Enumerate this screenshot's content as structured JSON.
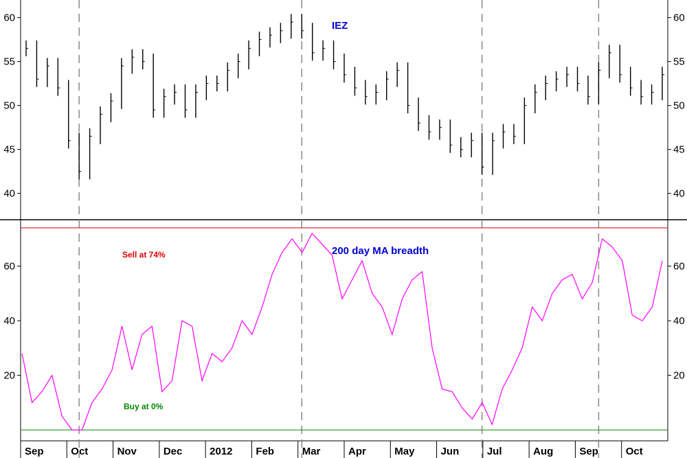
{
  "chart_data": [
    {
      "type": "ohlc",
      "title": "IEZ",
      "ylim": [
        37,
        62
      ],
      "yticks": [
        40,
        45,
        50,
        55,
        60
      ],
      "x": [
        "Aug 29",
        "Sep 05",
        "Sep 12",
        "Sep 19",
        "Sep 26",
        "Oct 03",
        "Oct 10",
        "Oct 17",
        "Oct 24",
        "Oct 31",
        "Nov 07",
        "Nov 14",
        "Nov 21",
        "Nov 28",
        "Dec 05",
        "Dec 12",
        "Dec 19",
        "Dec 26",
        "Jan 02",
        "Jan 09",
        "Jan 16",
        "Jan 23",
        "Jan 30",
        "Feb 06",
        "Feb 13",
        "Feb 20",
        "Feb 27",
        "Mar 05",
        "Mar 12",
        "Mar 19",
        "Mar 26",
        "Apr 02",
        "Apr 09",
        "Apr 16",
        "Apr 23",
        "Apr 30",
        "May 07",
        "May 14",
        "May 21",
        "May 28",
        "Jun 04",
        "Jun 11",
        "Jun 18",
        "Jun 25",
        "Jul 02",
        "Jul 09",
        "Jul 16",
        "Jul 23",
        "Jul 30",
        "Aug 06",
        "Aug 13",
        "Aug 20",
        "Aug 27",
        "Sep 03",
        "Sep 10",
        "Sep 17",
        "Sep 24",
        "Oct 01",
        "Oct 08",
        "Oct 15",
        "Oct 22"
      ],
      "close": [
        56.5,
        53.0,
        54.5,
        52.0,
        46.0,
        42.5,
        46.5,
        49.0,
        50.5,
        54.5,
        55.5,
        55.0,
        49.5,
        51.0,
        51.5,
        49.5,
        51.5,
        52.5,
        52.5,
        54.0,
        55.0,
        56.5,
        57.5,
        58.0,
        58.5,
        59.5,
        58.5,
        56.0,
        56.5,
        55.0,
        53.5,
        52.0,
        51.0,
        51.5,
        53.0,
        54.0,
        50.0,
        48.0,
        47.0,
        47.5,
        45.5,
        45.0,
        46.0,
        43.0,
        46.0,
        47.0,
        46.5,
        50.0,
        51.5,
        52.5,
        53.0,
        53.5,
        52.5,
        51.0,
        54.0,
        56.0,
        53.5,
        52.0,
        51.0,
        51.5,
        53.5
      ]
    },
    {
      "type": "line",
      "title": "200 day MA breadth",
      "ylim": [
        -4,
        77
      ],
      "yticks": [
        20,
        40,
        60
      ],
      "series": [
        {
          "values": [
            28,
            10,
            14,
            20,
            5,
            0,
            0,
            10,
            15,
            22,
            38,
            22,
            35,
            38,
            14,
            18,
            40,
            38,
            18,
            28,
            25,
            30,
            40,
            35,
            45,
            57,
            65,
            70,
            65,
            72,
            68,
            64,
            48,
            55,
            62,
            50,
            45,
            35,
            48,
            55,
            58,
            30,
            15,
            14,
            8,
            4,
            10,
            2,
            15,
            22,
            30,
            45,
            40,
            50,
            55,
            57,
            48,
            54,
            70,
            67,
            62,
            42,
            40,
            45,
            62
          ]
        }
      ],
      "annotations": {
        "sell_line": 74,
        "sell_text": "Sell at 74%",
        "buy_line": 0,
        "buy_text": "Buy at 0%"
      }
    }
  ],
  "x_axis": {
    "months": [
      "Sep",
      "Oct",
      "Nov",
      "Dec",
      "2012",
      "Feb",
      "Mar",
      "Apr",
      "May",
      "Jun",
      "Jul",
      "Aug",
      "Sep",
      "Oct"
    ],
    "signal_dates": [
      "Oct 03",
      "Feb 27",
      "Jun 25",
      "Sep 10"
    ]
  },
  "colors": {
    "price_bars": "#000000",
    "breadth_line": "#ff00ff",
    "sell_line": "#dd0000",
    "buy_line": "#008800",
    "title": "#0000cc",
    "signal_lines": "#888888"
  }
}
